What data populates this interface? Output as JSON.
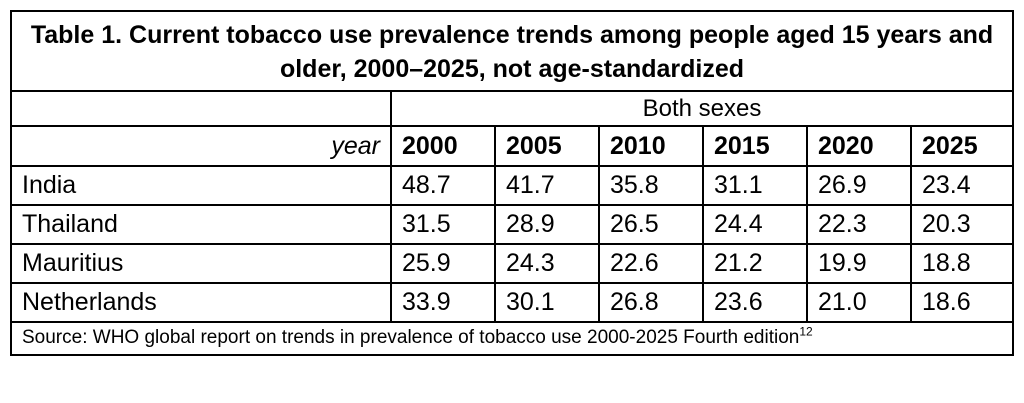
{
  "table": {
    "title": "Table 1. Current tobacco use prevalence trends among people aged 15 years and older, 2000–2025, not age-standardized",
    "group_header": "Both sexes",
    "year_label": "year",
    "source_text": "Source: WHO global report on trends in prevalence of tobacco use 2000-2025 Fourth edition",
    "source_superscript": "12"
  },
  "chart_data": {
    "type": "table",
    "title": "Table 1. Current tobacco use prevalence trends among people aged 15 years and older, 2000–2025, not age-standardized",
    "group": "Both sexes",
    "columns": [
      "2000",
      "2005",
      "2010",
      "2015",
      "2020",
      "2025"
    ],
    "rows": [
      {
        "label": "India",
        "values": [
          "48.7",
          "41.7",
          "35.8",
          "31.1",
          "26.9",
          "23.4"
        ]
      },
      {
        "label": "Thailand",
        "values": [
          "31.5",
          "28.9",
          "26.5",
          "24.4",
          "22.3",
          "20.3"
        ]
      },
      {
        "label": "Mauritius",
        "values": [
          "25.9",
          "24.3",
          "22.6",
          "21.2",
          "19.9",
          "18.8"
        ]
      },
      {
        "label": "Netherlands",
        "values": [
          "33.9",
          "30.1",
          "26.8",
          "23.6",
          "21.0",
          "18.6"
        ]
      }
    ]
  }
}
